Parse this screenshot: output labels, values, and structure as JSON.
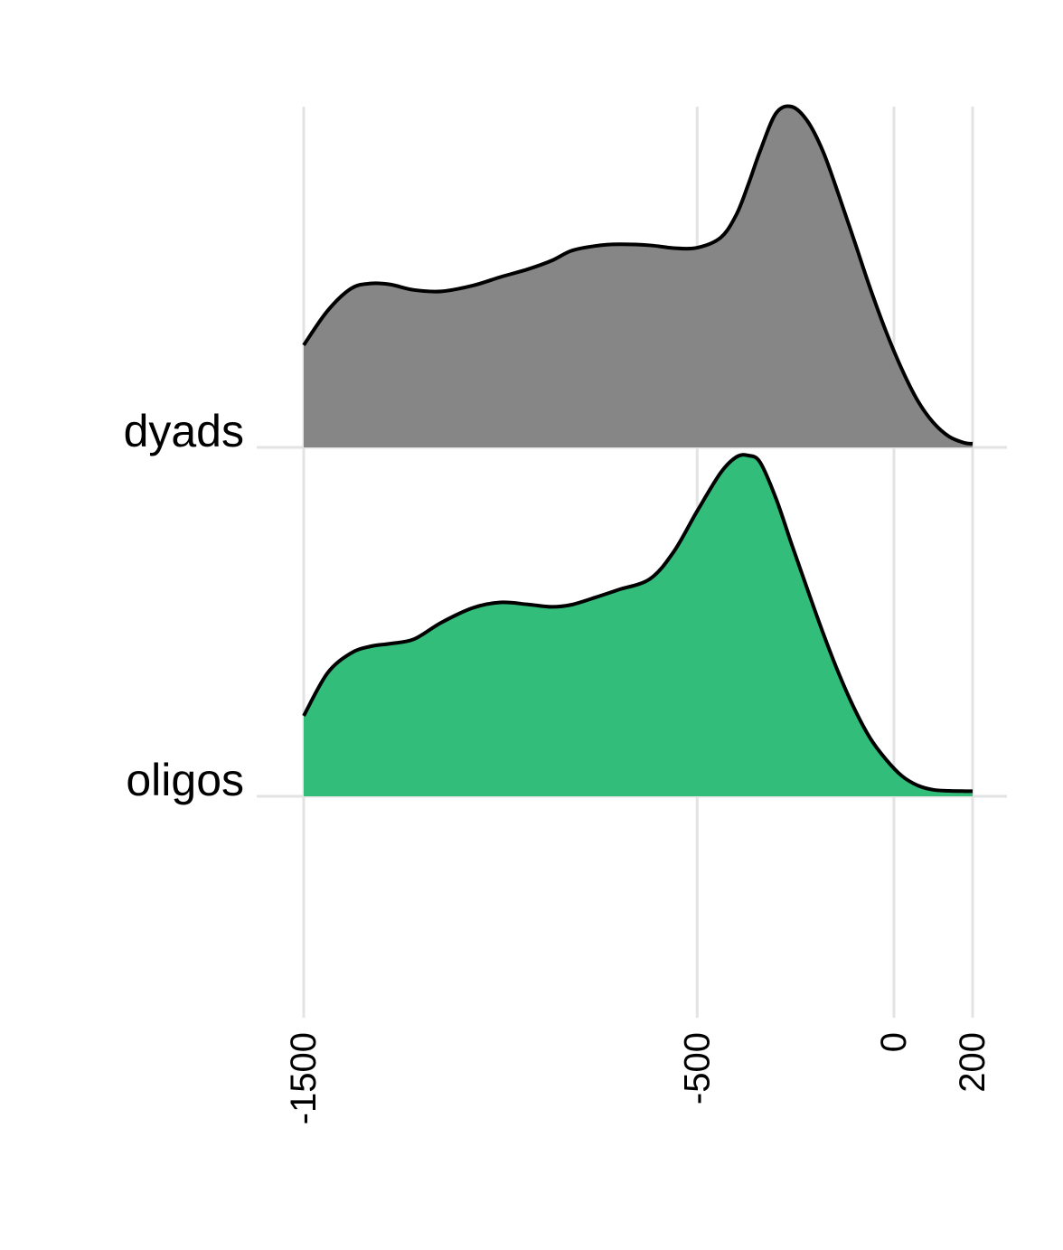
{
  "chart_data": {
    "type": "ridgeline",
    "title": "",
    "xlabel": "",
    "ylabel": "",
    "xlim": [
      -1500,
      200
    ],
    "x_ticks": [
      -1500,
      -500,
      0,
      200
    ],
    "x_tick_labels": [
      "-1500",
      "-500",
      "0",
      "200"
    ],
    "grid": true,
    "legend": "none",
    "series": [
      {
        "name": "dyads",
        "color": "#868686",
        "x": [
          -1500,
          -1440,
          -1380,
          -1330,
          -1280,
          -1220,
          -1150,
          -1070,
          -1000,
          -930,
          -870,
          -820,
          -760,
          -700,
          -620,
          -560,
          -500,
          -440,
          -400,
          -370,
          -340,
          -300,
          -260,
          -220,
          -180,
          -140,
          -100,
          -60,
          -20,
          20,
          60,
          100,
          140,
          180,
          200
        ],
        "density": [
          0.3,
          0.4,
          0.466,
          0.481,
          0.478,
          0.462,
          0.458,
          0.475,
          0.5,
          0.523,
          0.548,
          0.577,
          0.591,
          0.596,
          0.593,
          0.585,
          0.586,
          0.616,
          0.684,
          0.772,
          0.87,
          0.98,
          1.0,
          0.958,
          0.868,
          0.74,
          0.604,
          0.466,
          0.34,
          0.23,
          0.138,
          0.073,
          0.032,
          0.013,
          0.011
        ]
      },
      {
        "name": "oligos",
        "color": "#33bd7a",
        "x": [
          -1500,
          -1440,
          -1380,
          -1330,
          -1280,
          -1220,
          -1150,
          -1070,
          -1000,
          -930,
          -870,
          -820,
          -760,
          -700,
          -620,
          -560,
          -500,
          -440,
          -400,
          -370,
          -340,
          -300,
          -260,
          -220,
          -180,
          -140,
          -100,
          -60,
          -20,
          20,
          60,
          100,
          140,
          180,
          200
        ],
        "density": [
          0.236,
          0.361,
          0.42,
          0.44,
          0.448,
          0.461,
          0.51,
          0.553,
          0.569,
          0.563,
          0.556,
          0.562,
          0.583,
          0.606,
          0.638,
          0.717,
          0.837,
          0.95,
          0.996,
          1.0,
          0.98,
          0.875,
          0.74,
          0.608,
          0.479,
          0.36,
          0.256,
          0.17,
          0.108,
          0.06,
          0.032,
          0.019,
          0.016,
          0.015,
          0.015
        ]
      }
    ]
  }
}
